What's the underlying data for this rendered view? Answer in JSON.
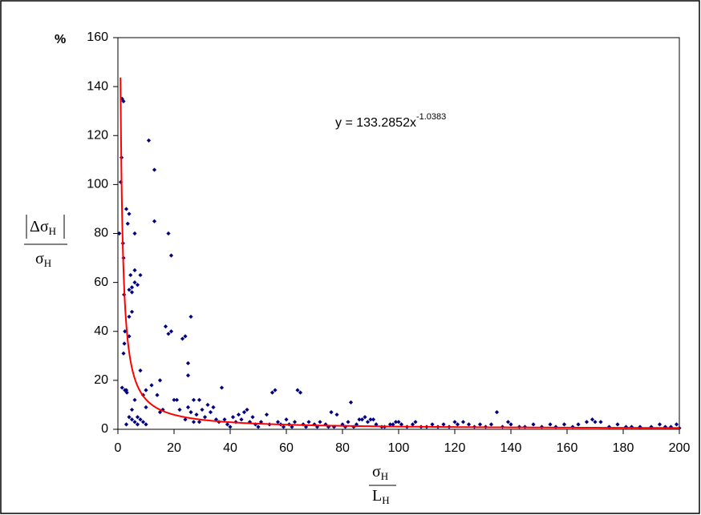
{
  "chart_data": {
    "type": "scatter",
    "unit_label": "%",
    "y_label": {
      "numerator": "Δσ",
      "numerator_sub": "H",
      "denominator": "σ",
      "denominator_sub": "H"
    },
    "x_label": {
      "numerator": "σ",
      "numerator_sub": "H",
      "denominator": "L",
      "denominator_sub": "H"
    },
    "color": "#000080",
    "x": [
      0.5,
      1,
      1.3,
      1.5,
      2,
      1.8,
      2,
      2.2,
      2.5,
      2.3,
      2,
      1.5,
      2.5,
      3,
      3.2,
      3,
      3.5,
      4,
      4,
      4.5,
      5,
      5,
      5,
      4,
      4,
      6,
      6,
      7,
      6,
      8,
      8,
      3,
      4,
      5,
      5,
      6,
      7,
      6,
      7,
      8,
      9,
      9,
      10,
      10,
      10,
      11,
      13,
      13,
      12,
      14,
      15,
      15,
      16,
      17,
      18,
      18,
      19,
      19,
      20,
      21,
      22,
      23,
      24,
      24,
      25,
      25,
      26,
      25,
      27,
      26,
      27,
      28,
      29,
      29,
      30,
      31,
      32,
      33,
      34,
      35,
      36,
      37,
      38,
      39,
      40,
      41,
      42,
      43,
      44,
      45,
      46,
      47,
      48,
      49,
      50,
      51,
      53,
      54,
      55,
      56,
      57,
      58,
      59,
      60,
      61,
      62,
      63,
      64,
      65,
      66,
      67,
      68,
      70,
      71,
      72,
      74,
      75,
      76,
      77,
      78,
      80,
      81,
      82,
      83,
      84,
      85,
      86,
      87,
      88,
      89,
      90,
      91,
      92,
      94,
      95,
      97,
      98,
      99,
      100,
      101,
      103,
      105,
      106,
      108,
      110,
      112,
      114,
      116,
      118,
      120,
      121,
      123,
      125,
      127,
      129,
      131,
      133,
      135,
      137,
      139,
      140,
      143,
      145,
      148,
      151,
      154,
      156,
      159,
      162,
      164,
      167,
      169,
      170,
      172,
      175,
      178,
      181,
      183,
      186,
      190,
      193,
      195,
      197,
      199,
      200
    ],
    "values": [
      80,
      101,
      111,
      135,
      134,
      76,
      70,
      55,
      40,
      35,
      31,
      17,
      16,
      16,
      15,
      90,
      84,
      88,
      57,
      63,
      58,
      56,
      48,
      38,
      46,
      65,
      60,
      59,
      80,
      63,
      24,
      2,
      5,
      4,
      8,
      3,
      2,
      12,
      5,
      4,
      3,
      14,
      16,
      9,
      2,
      118,
      106,
      85,
      18,
      14,
      7,
      20,
      8,
      42,
      80,
      39,
      71,
      40,
      12,
      12,
      8,
      37,
      38,
      4,
      27,
      22,
      46,
      9,
      12,
      7,
      3,
      6,
      12,
      3,
      8,
      5,
      10,
      7,
      9,
      4,
      3,
      17,
      4,
      2,
      1,
      5,
      3,
      6,
      4,
      7,
      8,
      3,
      5,
      2,
      1,
      3,
      6,
      2,
      15,
      16,
      3,
      2,
      1,
      4,
      2,
      1,
      3,
      16,
      15,
      2,
      1,
      3,
      2,
      1,
      3,
      2,
      1,
      7,
      1,
      6,
      2,
      1,
      3,
      11,
      1,
      2,
      4,
      4,
      5,
      3,
      4,
      4,
      2,
      1,
      1,
      2,
      2,
      3,
      3,
      2,
      1,
      2,
      3,
      1,
      1,
      2,
      1,
      2,
      1,
      3,
      2,
      3,
      2,
      1,
      2,
      1,
      2,
      7,
      1,
      3,
      2,
      1,
      1,
      2,
      1,
      2,
      1,
      2,
      1,
      2,
      3,
      4,
      3,
      3,
      1,
      2,
      1,
      1,
      1,
      1,
      2,
      1,
      1,
      2,
      0.5
    ],
    "xlim": [
      0,
      200
    ],
    "xticks": [
      0,
      20,
      40,
      60,
      80,
      100,
      120,
      140,
      160,
      180,
      200
    ],
    "ylim": [
      0,
      160
    ],
    "yticks": [
      0,
      20,
      40,
      60,
      80,
      100,
      120,
      140,
      160
    ],
    "trendline": {
      "coefficient": 133.2852,
      "exponent": -1.0383,
      "xlim": [
        0.93,
        200
      ],
      "color": "#ff0000",
      "label": "y = 133.2852x",
      "label_exponent": "-1.0383"
    }
  }
}
